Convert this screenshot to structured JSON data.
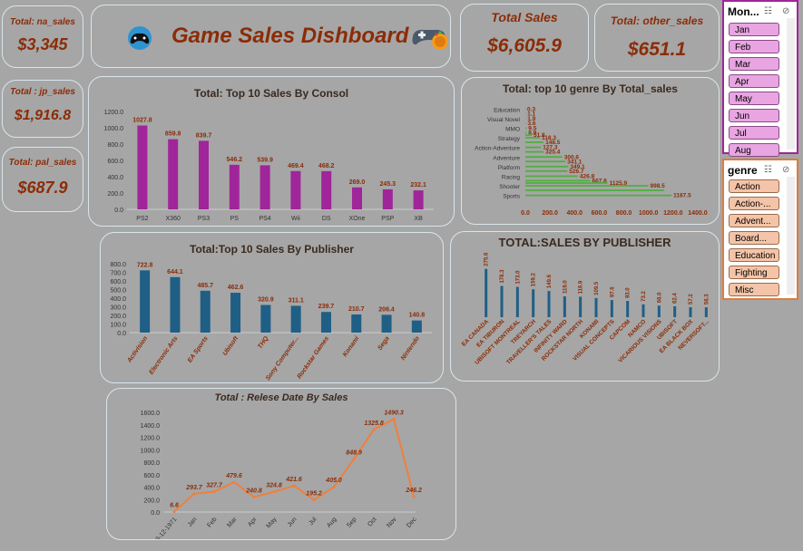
{
  "kpis": {
    "na_title": "Total: na_sales",
    "na_value": "$3,345",
    "jp_title": "Total : jp_sales",
    "jp_value": "$1,916.8",
    "pal_title": "Total: pal_sales",
    "pal_value": "$687.9",
    "total_title": "Total Sales",
    "total_value": "$6,605.9",
    "other_title": "Total: other_sales",
    "other_value": "$651.1"
  },
  "header": {
    "title": "Game Sales Dishboard"
  },
  "colors": {
    "purple": "#a0259a",
    "teal": "#1f5f86",
    "green": "#4fae3f",
    "orange": "#f07f3c",
    "label": "#8b2c07",
    "kpi": "#8b2c07"
  },
  "chart_data": [
    {
      "id": "console",
      "type": "bar",
      "title": "Total: Top 10 Sales By Consol",
      "categories": [
        "PS2",
        "X360",
        "PS3",
        "PS",
        "PS4",
        "Wii",
        "DS",
        "XOne",
        "PSP",
        "XB"
      ],
      "values": [
        1027.8,
        859.8,
        839.7,
        546.2,
        539.9,
        469.4,
        468.2,
        269.0,
        245.3,
        232.1
      ],
      "labels": [
        "1027.8",
        "859.8",
        "839.7",
        "546.2",
        "539.9",
        "469.4",
        "468.2",
        "269.0",
        "245.3",
        "232.1"
      ],
      "yticks": [
        "0.0",
        "200.0",
        "400.0",
        "600.0",
        "800.0",
        "1000.0",
        "1200.0"
      ],
      "ylim": [
        0,
        1200
      ]
    },
    {
      "id": "genre",
      "type": "bar",
      "orientation": "horizontal",
      "title": "Total: top 10 genre By Total_sales",
      "categories": [
        "Education",
        "Visual Novel",
        "MMO",
        "Strategy",
        "Action-Adventure",
        "Adventure",
        "Platform",
        "Racing",
        "Shooter",
        "Sports"
      ],
      "values": [
        0.3,
        1.9,
        9.5,
        118.3,
        127.3,
        300.6,
        349.1,
        426.8,
        998.5,
        1187.5
      ],
      "labels": [
        "0.3",
        "1.9",
        "9.5",
        "118.3",
        "127.3",
        "300.6",
        "349.1",
        "426.8",
        "998.5",
        "1187.5"
      ],
      "extra_bars": [
        {
          "after": "Education",
          "values": [
            1.1
          ]
        },
        {
          "after": "Visual Novel",
          "values": [
            3.6
          ]
        },
        {
          "after": "MMO",
          "values": [
            8.9,
            51.8
          ]
        },
        {
          "after": "Strategy",
          "values": [
            148.5
          ]
        },
        {
          "after": "Action-Adventure",
          "values": [
            148.5
          ]
        },
        {
          "after": "Adventure",
          "values": [
            325.4
          ]
        },
        {
          "after": "Platform",
          "values": [
            341.1
          ]
        },
        {
          "after": "Racing",
          "values": [
            526.7,
            667.8
          ]
        },
        {
          "after": "Shooter",
          "values": [
            1125.9
          ]
        },
        {
          "after": "Sports",
          "values": []
        }
      ],
      "extra_labels": [
        "1.1",
        "3.6",
        "8.9",
        "51.8",
        "148.5",
        "325.4",
        "341.1",
        "526.7",
        "667.8",
        "1125.9"
      ],
      "xticks": [
        "0.0",
        "200.0",
        "400.0",
        "600.0",
        "800.0",
        "1000.0",
        "1200.0",
        "1400.0"
      ],
      "xlim": [
        0,
        1400
      ]
    },
    {
      "id": "publisher10",
      "type": "bar",
      "title": "Total:Top 10 Sales By Publisher",
      "categories": [
        "Activision",
        "Electronic Arts",
        "EA Sports",
        "Ubisoft",
        "THQ",
        "Sony Computer...",
        "Rockstar Games",
        "Konami",
        "Sega",
        "Nintendo"
      ],
      "values": [
        722.8,
        644.1,
        485.7,
        462.6,
        320.9,
        311.1,
        239.7,
        210.7,
        206.4,
        140.8
      ],
      "labels": [
        "722.8",
        "644.1",
        "485.7",
        "462.6",
        "320.9",
        "311.1",
        "239.7",
        "210.7",
        "206.4",
        "140.8"
      ],
      "yticks": [
        "0.0",
        "100.0",
        "200.0",
        "300.0",
        "400.0",
        "500.0",
        "600.0",
        "700.0",
        "800.0"
      ],
      "ylim": [
        0,
        800
      ]
    },
    {
      "id": "publisherAll",
      "type": "bar",
      "title": "TOTAL:SALES BY PUBLISHER",
      "categories": [
        "EA CANADA",
        "EA TIBURON",
        "UBISOFT MONTREAL",
        "TREYARCH",
        "TRAVELLER'S TALES",
        "INFINITY WARD",
        "ROCKSTAR NORTH",
        "KONAMI",
        "VISUAL CONCEPTS",
        "CAPCOM",
        "NAMCO",
        "VICARIOUS VISIONS",
        "UBISOFT",
        "EA BLACK BOX",
        "NEVERSOFT..."
      ],
      "values": [
        275.6,
        178.3,
        173.0,
        159.2,
        149.6,
        119.0,
        116.9,
        109.5,
        97.6,
        93.0,
        73.2,
        66.0,
        62.4,
        57.2,
        56.3
      ],
      "labels": [
        "275.6",
        "178.3",
        "173.0",
        "159.2",
        "149.6",
        "119.0",
        "116.9",
        "109.5",
        "97.6",
        "93.0",
        "73.2",
        "66.0",
        "62.4",
        "57.2",
        "56.3"
      ]
    },
    {
      "id": "release",
      "type": "line",
      "title": "Total : Relese Date By Sales",
      "categories": [
        "<03-12-1971",
        "Jan",
        "Feb",
        "Mar",
        "Apr",
        "May",
        "Jun",
        "Jul",
        "Aug",
        "Sep",
        "Oct",
        "Nov",
        "Dec"
      ],
      "values": [
        6.6,
        293.7,
        327.7,
        479.6,
        240.8,
        324.8,
        421.6,
        195.2,
        405.0,
        848.9,
        1325.8,
        1490.3,
        246.2
      ],
      "labels": [
        "6.6",
        "293.7",
        "327.7",
        "479.6",
        "240.8",
        "324.8",
        "421.6",
        "195.2",
        "405.0",
        "848.9",
        "1325.8",
        "1490.3",
        "246.2"
      ],
      "yticks": [
        "0.0",
        "200.0",
        "400.0",
        "600.0",
        "800.0",
        "1000.0",
        "1200.0",
        "1400.0",
        "1600.0"
      ],
      "ylim": [
        0,
        1600
      ]
    }
  ],
  "slicers": {
    "month": {
      "header": "Mon...",
      "items": [
        "Jan",
        "Feb",
        "Mar",
        "Apr",
        "May",
        "Jun",
        "Jul",
        "Aug"
      ]
    },
    "genre": {
      "header": "genre",
      "items": [
        "Action",
        "Action-...",
        "Advent...",
        "Board...",
        "Education",
        "Fighting",
        "Misc"
      ]
    }
  }
}
